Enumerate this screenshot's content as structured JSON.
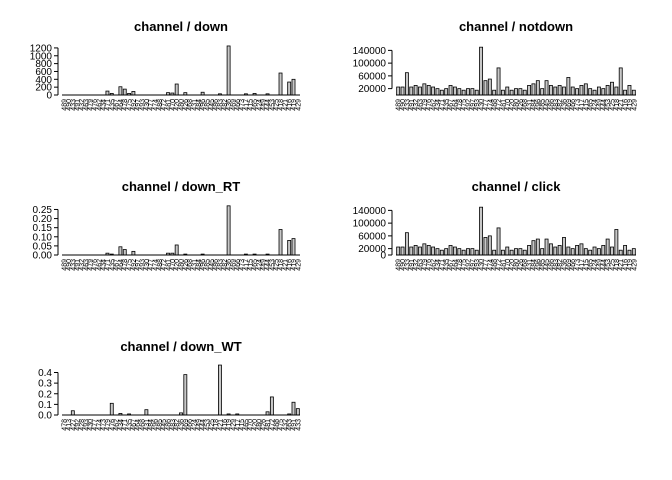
{
  "chart_data": [
    {
      "type": "bar",
      "title": "channel / down",
      "xlabel": "",
      "ylabel": "",
      "ylim": [
        0,
        1300
      ],
      "yticks": [
        "0",
        "200",
        "400",
        "600",
        "800",
        "1000",
        "1200"
      ],
      "categories": [
        "489",
        "490",
        "433",
        "491",
        "432",
        "463",
        "479",
        "476",
        "462",
        "434",
        "471",
        "435",
        "467",
        "464",
        "478",
        "475",
        "492",
        "497",
        "493",
        "430",
        "477",
        "474",
        "488",
        "472",
        "481",
        "470",
        "420",
        "480",
        "426",
        "468",
        "431",
        "484",
        "496",
        "485",
        "445",
        "486",
        "483",
        "482",
        "436",
        "469",
        "466",
        "473",
        "417",
        "415",
        "465",
        "424",
        "449",
        "444",
        "453",
        "425",
        "418",
        "421",
        "416",
        "419",
        "429"
      ],
      "values": [
        0,
        0,
        0,
        0,
        0,
        0,
        0,
        0,
        0,
        0,
        100,
        40,
        0,
        210,
        150,
        40,
        90,
        0,
        0,
        0,
        0,
        0,
        0,
        0,
        60,
        50,
        280,
        0,
        60,
        0,
        0,
        0,
        70,
        0,
        0,
        0,
        30,
        0,
        1250,
        0,
        0,
        0,
        30,
        0,
        40,
        0,
        0,
        30,
        0,
        0,
        560,
        0,
        330,
        400,
        0
      ]
    },
    {
      "type": "bar",
      "title": "channel / notdown",
      "xlabel": "",
      "ylabel": "",
      "ylim": [
        0,
        160000
      ],
      "yticks": [
        "20000",
        "60000",
        "100000",
        "140000"
      ],
      "categories": [
        "489",
        "490",
        "433",
        "491",
        "432",
        "463",
        "479",
        "476",
        "462",
        "434",
        "471",
        "435",
        "467",
        "464",
        "478",
        "475",
        "492",
        "497",
        "493",
        "430",
        "477",
        "474",
        "488",
        "472",
        "481",
        "470",
        "420",
        "480",
        "426",
        "468",
        "431",
        "484",
        "496",
        "485",
        "445",
        "486",
        "483",
        "482",
        "436",
        "469",
        "466",
        "473",
        "417",
        "415",
        "465",
        "424",
        "449",
        "444",
        "453",
        "425",
        "418",
        "421",
        "416",
        "419",
        "429"
      ],
      "values": [
        25000,
        25000,
        70000,
        25000,
        30000,
        25000,
        35000,
        30000,
        25000,
        20000,
        15000,
        20000,
        30000,
        25000,
        20000,
        15000,
        20000,
        20000,
        15000,
        150000,
        45000,
        50000,
        15000,
        85000,
        15000,
        25000,
        15000,
        20000,
        20000,
        15000,
        30000,
        35000,
        45000,
        20000,
        45000,
        30000,
        25000,
        30000,
        25000,
        55000,
        25000,
        20000,
        30000,
        35000,
        20000,
        15000,
        25000,
        20000,
        30000,
        40000,
        25000,
        85000,
        15000,
        30000,
        15000
      ]
    },
    {
      "type": "bar",
      "title": "channel / down_RT",
      "xlabel": "",
      "ylabel": "",
      "ylim": [
        0,
        0.28
      ],
      "yticks": [
        "0.00",
        "0.05",
        "0.10",
        "0.15",
        "0.20",
        "0.25"
      ],
      "categories": [
        "489",
        "490",
        "433",
        "491",
        "432",
        "463",
        "479",
        "476",
        "462",
        "434",
        "471",
        "435",
        "467",
        "464",
        "478",
        "475",
        "492",
        "497",
        "493",
        "430",
        "477",
        "474",
        "488",
        "472",
        "481",
        "470",
        "420",
        "480",
        "426",
        "468",
        "431",
        "484",
        "496",
        "485",
        "445",
        "486",
        "483",
        "482",
        "436",
        "469",
        "466",
        "473",
        "417",
        "415",
        "465",
        "424",
        "449",
        "444",
        "453",
        "425",
        "418",
        "421",
        "416",
        "419",
        "429"
      ],
      "values": [
        0,
        0,
        0,
        0,
        0,
        0,
        0,
        0,
        0,
        0,
        0.01,
        0.005,
        0,
        0.045,
        0.03,
        0,
        0.02,
        0,
        0,
        0,
        0,
        0,
        0,
        0,
        0.01,
        0.01,
        0.055,
        0,
        0.005,
        0,
        0,
        0,
        0.005,
        0,
        0,
        0,
        0,
        0,
        0.27,
        0,
        0,
        0,
        0.005,
        0,
        0.005,
        0,
        0,
        0.005,
        0,
        0,
        0.14,
        0,
        0.08,
        0.09,
        0
      ]
    },
    {
      "type": "bar",
      "title": "channel / click",
      "xlabel": "",
      "ylabel": "",
      "ylim": [
        0,
        160000
      ],
      "yticks": [
        "0",
        "20000",
        "60000",
        "100000",
        "140000"
      ],
      "categories": [
        "489",
        "490",
        "433",
        "491",
        "432",
        "463",
        "479",
        "476",
        "462",
        "434",
        "471",
        "435",
        "467",
        "464",
        "478",
        "475",
        "492",
        "497",
        "493",
        "430",
        "477",
        "474",
        "488",
        "472",
        "481",
        "470",
        "420",
        "480",
        "426",
        "468",
        "431",
        "484",
        "496",
        "485",
        "445",
        "486",
        "483",
        "482",
        "436",
        "469",
        "466",
        "473",
        "417",
        "415",
        "465",
        "424",
        "449",
        "444",
        "453",
        "425",
        "418",
        "421",
        "416",
        "419",
        "429"
      ],
      "values": [
        25000,
        25000,
        70000,
        25000,
        30000,
        25000,
        35000,
        30000,
        25000,
        20000,
        15000,
        20000,
        30000,
        25000,
        20000,
        15000,
        20000,
        20000,
        15000,
        150000,
        55000,
        60000,
        15000,
        85000,
        15000,
        25000,
        15000,
        20000,
        20000,
        15000,
        30000,
        45000,
        50000,
        20000,
        50000,
        35000,
        25000,
        30000,
        55000,
        25000,
        20000,
        30000,
        35000,
        20000,
        15000,
        25000,
        20000,
        30000,
        50000,
        25000,
        80000,
        15000,
        30000,
        15000,
        20000
      ]
    },
    {
      "type": "bar",
      "title": "channel / down_WT",
      "xlabel": "",
      "ylabel": "",
      "ylim": [
        0,
        0.48
      ],
      "yticks": [
        "0.0",
        "0.1",
        "0.2",
        "0.3",
        "0.4"
      ],
      "categories": [
        "478",
        "413",
        "427",
        "492",
        "428",
        "493",
        "430",
        "477",
        "474",
        "473",
        "479",
        "476",
        "462",
        "434",
        "471",
        "435",
        "467",
        "464",
        "468",
        "431",
        "484",
        "496",
        "485",
        "445",
        "486",
        "483",
        "482",
        "436",
        "469",
        "466",
        "424",
        "449",
        "444",
        "453",
        "425",
        "418",
        "421",
        "416",
        "419",
        "429",
        "417",
        "415",
        "465",
        "470",
        "420",
        "480",
        "426",
        "481",
        "472",
        "488",
        "475",
        "432",
        "463",
        "491",
        "433"
      ],
      "values": [
        0,
        0,
        0.04,
        0,
        0,
        0,
        0,
        0,
        0,
        0,
        0,
        0.11,
        0,
        0.015,
        0,
        0.01,
        0,
        0,
        0,
        0.05,
        0,
        0,
        0,
        0,
        0,
        0,
        0,
        0.02,
        0.38,
        0,
        0,
        0,
        0,
        0,
        0,
        0,
        0.47,
        0,
        0.01,
        0,
        0.01,
        0,
        0,
        0,
        0,
        0,
        0,
        0.03,
        0.17,
        0,
        0,
        0,
        0.01,
        0.12,
        0.06
      ]
    }
  ]
}
